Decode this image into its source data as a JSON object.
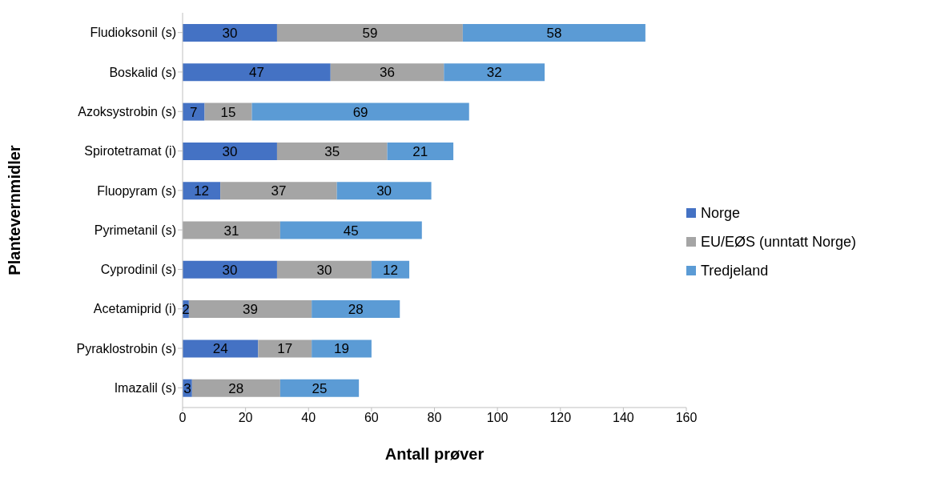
{
  "chart_data": {
    "type": "bar",
    "orientation": "horizontal",
    "stacked": true,
    "xlabel": "Antall prøver",
    "ylabel": "Plantevernmidler",
    "categories": [
      "Fludioksonil (s)",
      "Boskalid (s)",
      "Azoksystrobin (s)",
      "Spirotetramat (i)",
      "Fluopyram (s)",
      "Pyrimetanil (s)",
      "Cyprodinil (s)",
      "Acetamiprid (i)",
      "Pyraklostrobin (s)",
      "Imazalil (s)"
    ],
    "series": [
      {
        "name": "Norge",
        "color": "#4472c4",
        "values": [
          30,
          47,
          7,
          30,
          12,
          null,
          30,
          2,
          24,
          3
        ]
      },
      {
        "name": "EU/EØS (unntatt Norge)",
        "color": "#a5a5a5",
        "values": [
          59,
          36,
          15,
          35,
          37,
          31,
          30,
          39,
          17,
          28
        ]
      },
      {
        "name": "Tredjeland",
        "color": "#5b9bd5",
        "values": [
          58,
          32,
          69,
          21,
          30,
          45,
          12,
          28,
          19,
          25
        ]
      }
    ],
    "xlim": [
      0,
      160
    ],
    "xticks": [
      0,
      20,
      40,
      60,
      80,
      100,
      120,
      140,
      160
    ],
    "grid": false,
    "legend": "right",
    "data_labels": true
  }
}
